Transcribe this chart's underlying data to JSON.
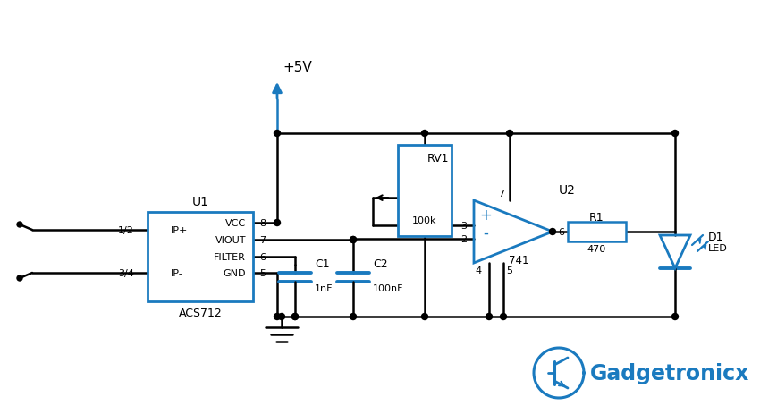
{
  "bg_color": "#ffffff",
  "black": "#000000",
  "blue": "#1a7abf",
  "figsize": [
    8.5,
    4.64
  ],
  "dpi": 100,
  "labels": {
    "vcc": "+5V",
    "u1_name": "U1",
    "u1_sub": "ACS712",
    "u1_ip_pos": "IP+",
    "u1_ip_neg": "IP-",
    "u1_vcc": "VCC",
    "u1_viout": "VIOUT",
    "u1_filter": "FILTER",
    "u1_gnd": "GND",
    "pin8": "8",
    "pin7": "7",
    "pin6": "6",
    "pin5": "5",
    "pin3": "3",
    "pin2": "2",
    "pin_out6": "6",
    "pin4": "4",
    "pin_5u2": "5",
    "pin7u2": "7",
    "in12": "1/2",
    "in34": "3/4",
    "rv1_name": "RV1",
    "rv1_val": "100k",
    "c1_name": "C1",
    "c1_val": "1nF",
    "c2_name": "C2",
    "c2_val": "100nF",
    "u2_name": "U2",
    "u2_sub": "741",
    "u2_plus": "+",
    "u2_minus": "-",
    "r1_name": "R1",
    "r1_val": "470",
    "d1_name": "D1",
    "d1_val": "LED",
    "gadget": "Gadgetronicx"
  }
}
